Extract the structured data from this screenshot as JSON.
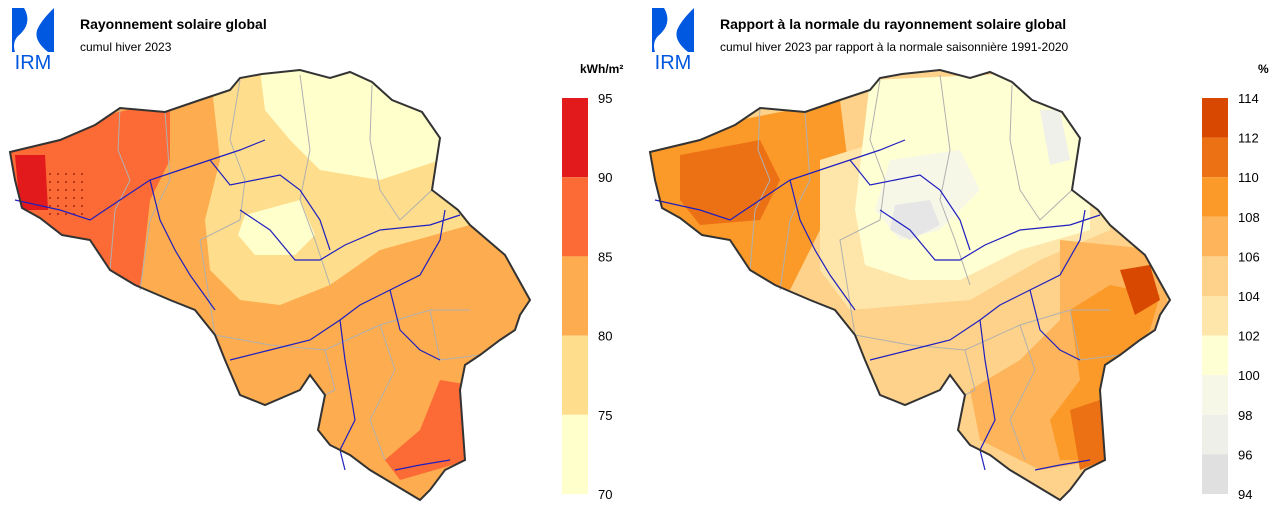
{
  "logo": {
    "text": "IRM",
    "color": "#0057e0"
  },
  "left": {
    "title": "Rayonnement solaire global",
    "subtitle": "cumul hiver 2023",
    "unit": "kWh/m²",
    "legend": {
      "ticks": [
        "95",
        "90",
        "85",
        "80",
        "75",
        "70"
      ],
      "colors": [
        "#e31a1c",
        "#fc6a35",
        "#fdac4f",
        "#fede8c",
        "#ffffcc"
      ]
    }
  },
  "right": {
    "title": "Rapport à la normale du rayonnement solaire global",
    "subtitle": "cumul hiver 2023 par rapport à la normale saisonnière 1991-2020",
    "unit": "%",
    "legend": {
      "ticks": [
        "114",
        "112",
        "110",
        "108",
        "106",
        "104",
        "102",
        "100",
        "98",
        "96",
        "94"
      ],
      "colors": [
        "#d94801",
        "#ec7014",
        "#fb9a29",
        "#fdb45a",
        "#fed28a",
        "#fee6aa",
        "#ffffd4",
        "#f7f7e8",
        "#efefea",
        "#e0e0e0"
      ]
    }
  },
  "colors": {
    "border": "#333333",
    "river": "#1f1fbf",
    "province": "#b0b0b0"
  }
}
